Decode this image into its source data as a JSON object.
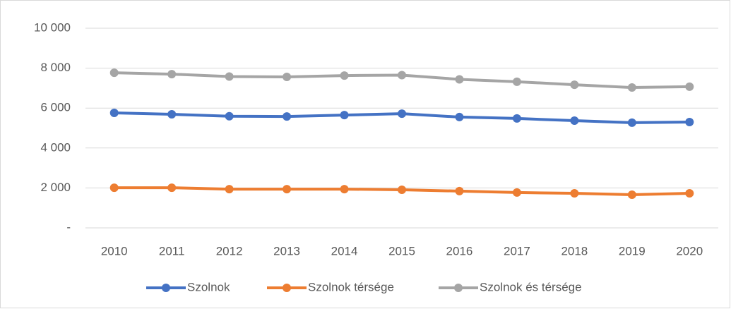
{
  "chart_data": {
    "type": "line",
    "categories": [
      "2010",
      "2011",
      "2012",
      "2013",
      "2014",
      "2015",
      "2016",
      "2017",
      "2018",
      "2019",
      "2020"
    ],
    "series": [
      {
        "name": "Szolnok",
        "color": "#4472c4",
        "values": [
          5760,
          5690,
          5590,
          5580,
          5650,
          5720,
          5550,
          5480,
          5370,
          5270,
          5300
        ]
      },
      {
        "name": "Szolnok térsége",
        "color": "#ed7d31",
        "values": [
          2010,
          2010,
          1940,
          1940,
          1940,
          1910,
          1840,
          1770,
          1730,
          1660,
          1730
        ]
      },
      {
        "name": "Szolnok és térsége",
        "color": "#a5a5a5",
        "values": [
          7770,
          7700,
          7580,
          7560,
          7630,
          7650,
          7440,
          7320,
          7170,
          7030,
          7070
        ]
      }
    ],
    "ylim": [
      0,
      10000
    ],
    "yticks": [
      {
        "value": 0,
        "label": "-"
      },
      {
        "value": 2000,
        "label": "2 000"
      },
      {
        "value": 4000,
        "label": "4 000"
      },
      {
        "value": 6000,
        "label": "6 000"
      },
      {
        "value": 8000,
        "label": "8 000"
      },
      {
        "value": 10000,
        "label": "10 000"
      }
    ],
    "grid": true,
    "legend": "bottom"
  }
}
